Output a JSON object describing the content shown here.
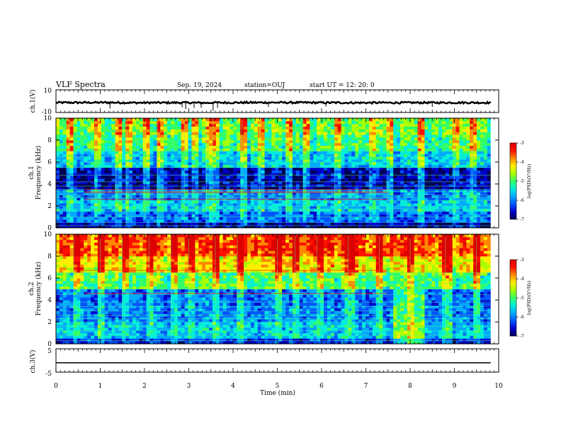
{
  "header": {
    "title": "VLF Spectra",
    "date": "Sep. 19, 2024",
    "station": "station=OUJ",
    "start": "start  UT =   12: 20: 0"
  },
  "colors": {
    "colormap": [
      "#000055",
      "#0000cc",
      "#0055ff",
      "#00aaff",
      "#00eedd",
      "#33ff66",
      "#aaff00",
      "#ffee00",
      "#ff8800",
      "#ff1100",
      "#dd0000"
    ],
    "line": "#000000",
    "background": "#ffffff"
  },
  "chart_data": [
    {
      "type": "line",
      "name": "ch1-waveform",
      "ylabel": "ch.1(V)",
      "ylim": [
        -10,
        10
      ],
      "yticks": [
        "10",
        "-10"
      ],
      "xlim": [
        0,
        10
      ],
      "x": [
        0,
        1.2,
        1.9,
        2.9,
        3.4,
        3.6,
        4.8,
        5.9,
        7.0,
        8.3,
        9.8
      ],
      "y": [
        -1.3,
        -1.2,
        -1.4,
        -1.3,
        -1.5,
        -1.3,
        -1.2,
        -1.3,
        -1.4,
        -1.3,
        -1.3
      ],
      "spikes_x": [
        1.22,
        2.85,
        2.93,
        3.12,
        3.28,
        3.55,
        3.65,
        4.8,
        6.1,
        8.5
      ],
      "spikes_y": [
        -6.5,
        -5.5,
        -7.0,
        -6.0,
        -5.8,
        -8.5,
        -6.0,
        -5.0,
        -4.8,
        -5.0
      ]
    },
    {
      "type": "heatmap",
      "name": "ch1-spectrogram",
      "ylabel": "ch.1\nFrequency  (kHz)",
      "ylim": [
        0,
        10
      ],
      "yticks": [
        "0",
        "2",
        "4",
        "6",
        "8",
        "10"
      ],
      "xlim": [
        0,
        10
      ],
      "colorbar": {
        "label": "log(PSD)(V²/Hz)",
        "range": [
          -7,
          -3
        ],
        "ticks": [
          "-3",
          "-4",
          "-5",
          "-6",
          "-7"
        ]
      },
      "bands": [
        {
          "f": [
            0,
            0.4
          ],
          "value": -6.6
        },
        {
          "f": [
            0.4,
            1.5
          ],
          "value": -6.0
        },
        {
          "f": [
            1.5,
            2.6
          ],
          "value": -5.6
        },
        {
          "f": [
            2.6,
            3.6
          ],
          "value": -5.9
        },
        {
          "f": [
            3.6,
            5.5
          ],
          "value": -6.6
        },
        {
          "f": [
            5.5,
            7.0
          ],
          "value": -5.6
        },
        {
          "f": [
            7.0,
            8.5
          ],
          "value": -5.1
        },
        {
          "f": [
            8.5,
            10
          ],
          "value": -4.9
        }
      ],
      "lines_kHz": [
        0.2,
        0.5,
        1.0,
        1.5,
        1.7,
        2.0,
        2.5,
        2.8,
        3.0,
        3.3,
        3.5,
        3.8,
        4.2,
        4.8,
        5.5,
        6.0,
        6.5,
        7.0
      ],
      "red_lines_kHz": [
        2.6,
        3.2,
        3.3,
        3.5
      ],
      "sferics_min": [
        0.3,
        0.9,
        1.35,
        1.6,
        2.0,
        2.3,
        2.9,
        3.1,
        3.4,
        3.55,
        4.2,
        4.6,
        5.2,
        5.6,
        6.3,
        7.1,
        7.5,
        8.2,
        9.0,
        9.4
      ]
    },
    {
      "type": "heatmap",
      "name": "ch2-spectrogram",
      "ylabel": "ch.2\nFrequency  (kHz)",
      "ylim": [
        0,
        10
      ],
      "yticks": [
        "0",
        "2",
        "4",
        "6",
        "8",
        "10"
      ],
      "xlim": [
        0,
        10
      ],
      "colorbar": {
        "label": "log(PSD)(V²/Hz)",
        "range": [
          -7,
          -3
        ],
        "ticks": [
          "-3",
          "-4",
          "-5",
          "-6",
          "-7"
        ]
      },
      "bands": [
        {
          "f": [
            0,
            0.4
          ],
          "value": -6.3
        },
        {
          "f": [
            0.4,
            2.0
          ],
          "value": -5.6
        },
        {
          "f": [
            2.0,
            3.5
          ],
          "value": -5.9
        },
        {
          "f": [
            3.5,
            5.0
          ],
          "value": -6.0
        },
        {
          "f": [
            5.0,
            6.5
          ],
          "value": -5.0
        },
        {
          "f": [
            6.5,
            8.0
          ],
          "value": -4.3
        },
        {
          "f": [
            8.0,
            10
          ],
          "value": -3.7
        }
      ],
      "lines_kHz": [
        0.3,
        0.8,
        1.2,
        1.6,
        2.0,
        2.3,
        2.6,
        3.0,
        3.4,
        3.8,
        4.5,
        5.0,
        5.5,
        6.5
      ],
      "red_lines_kHz": [
        4.6,
        6.7
      ],
      "bright_patch_min": [
        7.6,
        8.3
      ],
      "sferics_min": [
        0.4,
        1.0,
        1.5,
        2.1,
        2.6,
        3.0,
        3.6,
        4.1,
        5.0,
        5.4,
        5.9,
        6.6,
        7.3,
        8.0,
        8.8,
        9.5
      ]
    },
    {
      "type": "line",
      "name": "ch3-waveform",
      "ylabel": "ch.3(V)",
      "ylim": [
        -5,
        5
      ],
      "yticks": [
        "5",
        "0",
        "-5"
      ],
      "xlim": [
        0,
        10
      ],
      "x": [
        0,
        9.82
      ],
      "y": [
        -1,
        -1
      ]
    }
  ],
  "xaxis": {
    "label": "Time  (min)",
    "ticks": [
      "0",
      "1",
      "2",
      "3",
      "4",
      "5",
      "6",
      "7",
      "8",
      "9",
      "10"
    ]
  }
}
